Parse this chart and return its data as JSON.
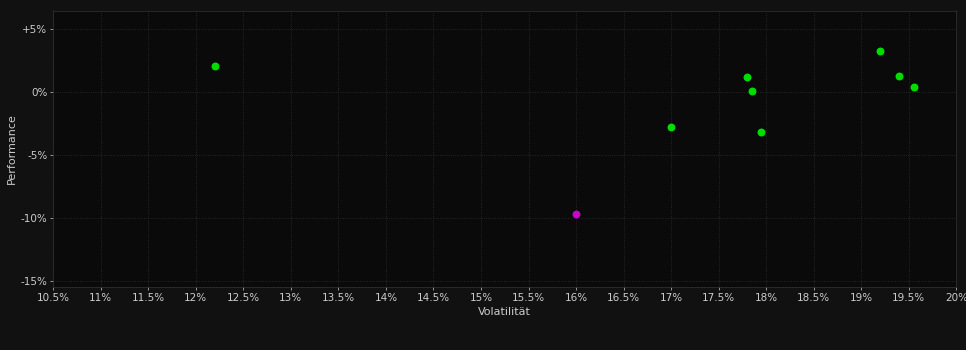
{
  "background_color": "#111111",
  "plot_bg_color": "#0a0a0a",
  "grid_color": "#2d2d2d",
  "text_color": "#cccccc",
  "xlabel": "Volatilität",
  "ylabel": "Performance",
  "xlim": [
    0.105,
    0.2
  ],
  "ylim": [
    -0.155,
    0.065
  ],
  "xticks": [
    0.105,
    0.11,
    0.115,
    0.12,
    0.125,
    0.13,
    0.135,
    0.14,
    0.145,
    0.15,
    0.155,
    0.16,
    0.165,
    0.17,
    0.175,
    0.18,
    0.185,
    0.19,
    0.195,
    0.2
  ],
  "yticks": [
    0.05,
    0.0,
    -0.05,
    -0.1,
    -0.15
  ],
  "ytick_labels": [
    "+5%",
    "0%",
    "-5%",
    "-10%",
    "-15%"
  ],
  "xtick_labels": [
    "10.5%",
    "11%",
    "11.5%",
    "12%",
    "12.5%",
    "13%",
    "13.5%",
    "14%",
    "14.5%",
    "15%",
    "15.5%",
    "16%",
    "16.5%",
    "17%",
    "17.5%",
    "18%",
    "18.5%",
    "19%",
    "19.5%",
    "20%"
  ],
  "green_points": [
    [
      0.122,
      0.021
    ],
    [
      0.17,
      -0.028
    ],
    [
      0.178,
      0.012
    ],
    [
      0.1785,
      0.001
    ],
    [
      0.1795,
      -0.032
    ],
    [
      0.192,
      0.033
    ],
    [
      0.194,
      0.013
    ],
    [
      0.1955,
      0.004
    ]
  ],
  "magenta_points": [
    [
      0.16,
      -0.097
    ]
  ],
  "green_color": "#00dd00",
  "magenta_color": "#cc00cc",
  "dot_size": 22,
  "font_size_axis": 8,
  "font_size_ticks": 7.5
}
